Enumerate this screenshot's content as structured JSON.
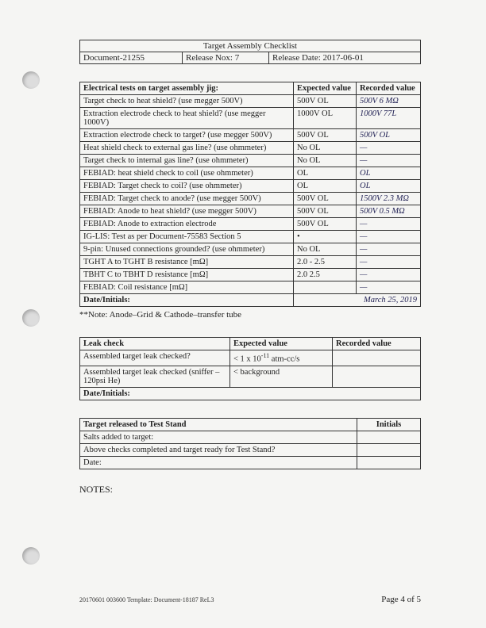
{
  "header": {
    "title": "Target Assembly Checklist",
    "doc_label": "Document-21255",
    "release_nox": "Release Nox: 7",
    "release_date": "Release Date: 2017-06-01"
  },
  "electrical": {
    "heading": "Electrical tests on target assembly jig:",
    "col_expected": "Expected value",
    "col_recorded": "Recorded value",
    "rows": [
      {
        "desc": "Target check to heat shield? (use megger 500V)",
        "expected": "500V OL",
        "recorded": "500V   6 MΩ"
      },
      {
        "desc": "Extraction electrode check to heat shield? (use megger 1000V)",
        "expected": "1000V OL",
        "recorded": "1000V  77L"
      },
      {
        "desc": "Extraction electrode check to target? (use megger 500V)",
        "expected": "500V OL",
        "recorded": "500V  OL"
      },
      {
        "desc": "Heat shield check to external gas line? (use ohmmeter)",
        "expected": "No OL",
        "recorded": "—"
      },
      {
        "desc": "Target check to internal gas line? (use ohmmeter)",
        "expected": "No OL",
        "recorded": "—"
      },
      {
        "desc": "FEBIAD: heat shield check to coil (use ohmmeter)",
        "expected": "OL",
        "recorded": "OL"
      },
      {
        "desc": "FEBIAD: Target check to coil? (use ohmmeter)",
        "expected": "OL",
        "recorded": "OL"
      },
      {
        "desc": "FEBIAD: Target check to anode? (use megger 500V)",
        "expected": "500V OL",
        "recorded": "1500V  2.3 MΩ"
      },
      {
        "desc": "FEBIAD: Anode to heat shield? (use megger 500V)",
        "expected": "500V OL",
        "recorded": "500V  0.5 MΩ"
      },
      {
        "desc": "FEBIAD: Anode to extraction electrode",
        "expected": "500V OL",
        "recorded": "—"
      },
      {
        "desc": "IG-LIS: Test as per Document-75583 Section 5",
        "expected": "•",
        "recorded": "—"
      },
      {
        "desc": "9-pin: Unused connections grounded? (use ohmmeter)",
        "expected": "No OL",
        "recorded": "—"
      },
      {
        "desc": "TGHT A to TGHT B resistance [mΩ]",
        "expected": "2.0 - 2.5",
        "recorded": "—"
      },
      {
        "desc": "TBHT C to TBHT D resistance [mΩ]",
        "expected": "2.0 2.5",
        "recorded": "—"
      },
      {
        "desc": "FEBIAD: Coil resistance [mΩ]",
        "expected": "",
        "recorded": "—"
      }
    ],
    "date_initials_label": "Date/Initials:",
    "date_initials_value": "March 25, 2019",
    "note": "**Note: Anode–Grid & Cathode–transfer tube"
  },
  "leak": {
    "heading": "Leak check",
    "col_expected": "Expected value",
    "col_recorded": "Recorded value",
    "rows": [
      {
        "desc": "Assembled target leak checked?",
        "expected_html": "< 1 x 10<sup>-11</sup> atm-cc/s",
        "recorded": ""
      },
      {
        "desc": "Assembled target leak checked (sniffer – 120psi He)",
        "expected_html": "< background",
        "recorded": ""
      }
    ],
    "date_initials_label": "Date/Initials:"
  },
  "release": {
    "heading": "Target released to Test Stand",
    "initials_label": "Initials",
    "rows": [
      {
        "desc": "Salts added to target:",
        "val": ""
      },
      {
        "desc": "Above checks completed and target ready for Test Stand?",
        "val": ""
      },
      {
        "desc": "Date:",
        "val": ""
      }
    ]
  },
  "notes_label": "NOTES:",
  "footer": {
    "left": "20170601 003600 Template: Document-18187 ReL3",
    "right": "Page 4 of 5"
  }
}
